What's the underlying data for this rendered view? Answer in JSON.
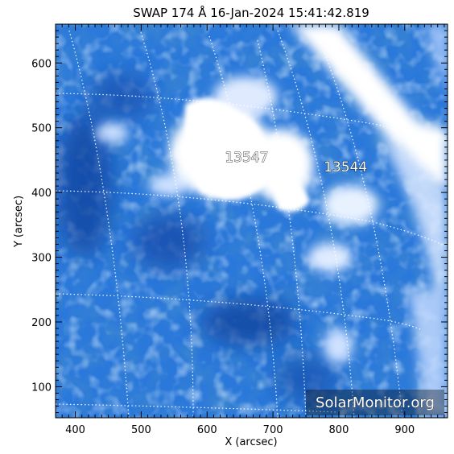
{
  "title": "SWAP 174 Å 16-Jan-2024 15:41:42.819",
  "x_axis": {
    "label": "X (arcsec)",
    "range": [
      370,
      965
    ],
    "ticks": [
      "400",
      "500",
      "600",
      "700",
      "800",
      "900"
    ]
  },
  "y_axis": {
    "label": "Y (arcsec)",
    "range": [
      52,
      660
    ],
    "ticks": [
      "100",
      "200",
      "300",
      "400",
      "500",
      "600"
    ]
  },
  "active_regions": [
    {
      "label": "13547",
      "x": 660,
      "y": 455
    },
    {
      "label": "13544",
      "x": 810,
      "y": 440
    }
  ],
  "watermark": "SolarMonitor.org",
  "colors": {
    "base_blue": "#1f6fd6",
    "deep_blue": "#0b3f9e",
    "bright": "#ffffff",
    "grid": "#ffffff"
  }
}
